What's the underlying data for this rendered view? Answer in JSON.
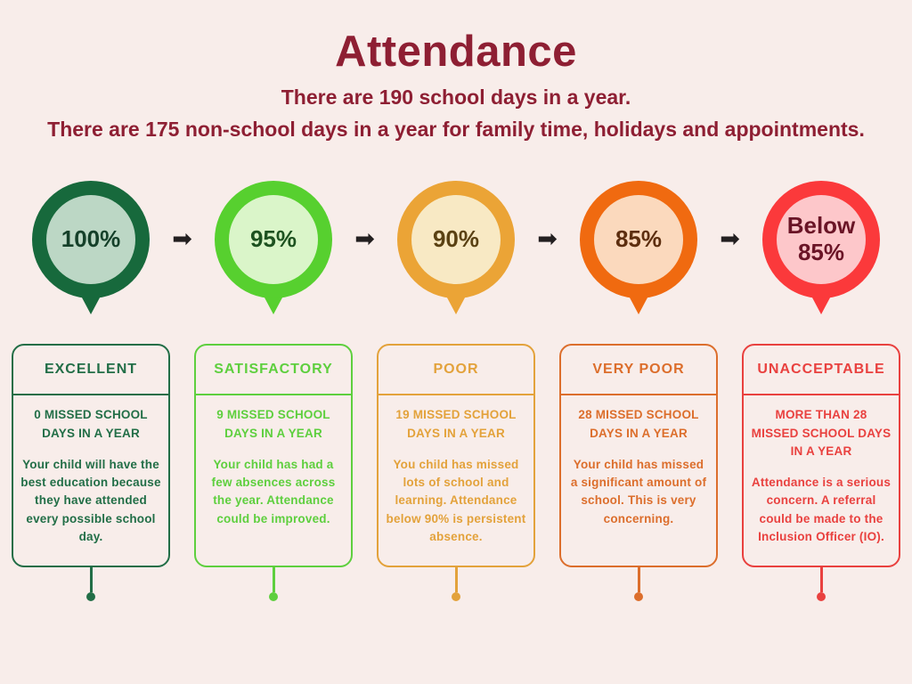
{
  "page": {
    "title": "Attendance",
    "subtitle_line1": "There are 190 school days in a year.",
    "subtitle_line2": "There are 175 non-school days in a year for family time, holidays and appointments."
  },
  "colors": {
    "background": "#f8edea",
    "heading": "#8e1f33",
    "arrow": "#231f20"
  },
  "arrow_icon": "➡",
  "stages": [
    {
      "percent": "100%",
      "category": "EXCELLENT",
      "missed": "0 MISSED SCHOOL DAYS IN A YEAR",
      "description": "Your child will have the best education because they have attended every possible school day.",
      "colors": {
        "outer": "#17693c",
        "inner": "#bcd7c5",
        "pct": "#15402a",
        "card": "#226e47"
      }
    },
    {
      "percent": "95%",
      "category": "SATISFACTORY",
      "missed": "9 MISSED SCHOOL DAYS IN A YEAR",
      "description": "Your child has had a few absences across the year. Attendance could be improved.",
      "colors": {
        "outer": "#57d02f",
        "inner": "#daf5c9",
        "pct": "#1d5220",
        "card": "#5ecf3e"
      }
    },
    {
      "percent": "90%",
      "category": "POOR",
      "missed": "19 MISSED SCHOOL DAYS IN A YEAR",
      "description": "You child has missed lots of school and learning. Attendance below 90% is persistent absence.",
      "colors": {
        "outer": "#eba436",
        "inner": "#f8e9c4",
        "pct": "#5a4113",
        "card": "#e3a23b"
      }
    },
    {
      "percent": "85%",
      "category": "VERY POOR",
      "missed": "28 MISSED SCHOOL DAYS IN A YEAR",
      "description": "Your child has missed a significant amount of school. This is very concerning.",
      "colors": {
        "outer": "#f06a10",
        "inner": "#fbd9bd",
        "pct": "#5d2e0f",
        "card": "#dc6e2c"
      }
    },
    {
      "percent": "Below 85%",
      "category": "UNACCEPTABLE",
      "missed": "MORE THAN 28 MISSED SCHOOL DAYS IN A YEAR",
      "description": "Attendance is a serious concern. A referral could be made to the Inclusion Officer (IO).",
      "colors": {
        "outer": "#fb393b",
        "inner": "#fdc7ca",
        "pct": "#6a1426",
        "card": "#e9413f"
      }
    }
  ]
}
